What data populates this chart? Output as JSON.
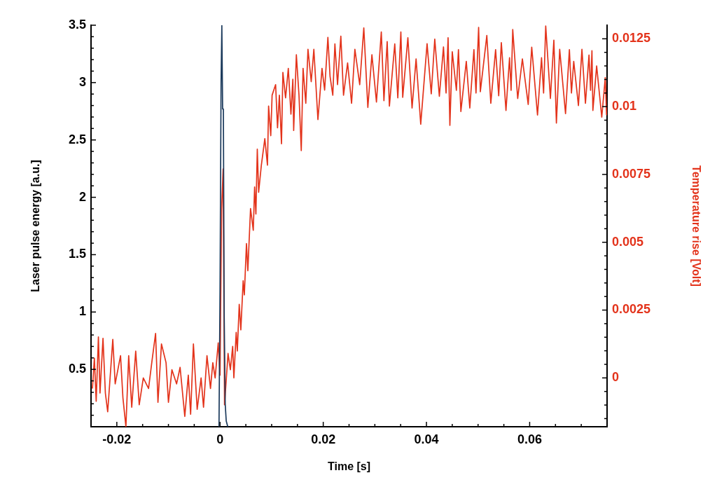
{
  "chart_data": {
    "type": "line",
    "xlabel": "Time [s]",
    "ylabel": "Laser pulse energy [a.u.]",
    "y2label": "Temperature rise [Volt]",
    "xlim": [
      -0.025,
      0.075
    ],
    "xticks": [
      -0.02,
      {
        "value": -0.015,
        "label": null
      },
      {
        "value": -0.01,
        "label": null
      },
      {
        "value": -0.005,
        "label": null
      },
      0,
      {
        "value": 0.005,
        "label": null
      },
      {
        "value": 0.01,
        "label": null
      },
      {
        "value": 0.015,
        "label": null
      },
      0.02,
      {
        "value": 0.025,
        "label": null
      },
      {
        "value": 0.03,
        "label": null
      },
      {
        "value": 0.035,
        "label": null
      },
      0.04,
      {
        "value": 0.045,
        "label": null
      },
      {
        "value": 0.05,
        "label": null
      },
      {
        "value": 0.055,
        "label": null
      },
      0.06,
      {
        "value": 0.065,
        "label": null
      },
      {
        "value": 0.07,
        "label": null
      }
    ],
    "ylim": [
      0,
      3.5
    ],
    "yticks": [
      {
        "value": 0.1,
        "label": null
      },
      {
        "value": 0.2,
        "label": null
      },
      {
        "value": 0.3,
        "label": null
      },
      {
        "value": 0.4,
        "label": null
      },
      0.5,
      {
        "value": 0.6,
        "label": null
      },
      {
        "value": 0.7,
        "label": null
      },
      {
        "value": 0.8,
        "label": null
      },
      {
        "value": 0.9,
        "label": null
      },
      1,
      {
        "value": 1.1,
        "label": null
      },
      {
        "value": 1.2,
        "label": null
      },
      {
        "value": 1.3,
        "label": null
      },
      {
        "value": 1.4,
        "label": null
      },
      1.5,
      {
        "value": 1.6,
        "label": null
      },
      {
        "value": 1.7,
        "label": null
      },
      {
        "value": 1.8,
        "label": null
      },
      {
        "value": 1.9,
        "label": null
      },
      2,
      {
        "value": 2.1,
        "label": null
      },
      {
        "value": 2.2,
        "label": null
      },
      {
        "value": 2.3,
        "label": null
      },
      {
        "value": 2.4,
        "label": null
      },
      2.5,
      {
        "value": 2.6,
        "label": null
      },
      {
        "value": 2.7,
        "label": null
      },
      {
        "value": 2.8,
        "label": null
      },
      {
        "value": 2.9,
        "label": null
      },
      3,
      {
        "value": 3.1,
        "label": null
      },
      {
        "value": 3.2,
        "label": null
      },
      {
        "value": 3.3,
        "label": null
      },
      {
        "value": 3.4,
        "label": null
      },
      3.5
    ],
    "y2lim": [
      -0.0018,
      0.013
    ],
    "y2ticks": [
      {
        "value": -0.0015,
        "label": null
      },
      {
        "value": -0.001,
        "label": null
      },
      {
        "value": -0.0005,
        "label": null
      },
      0,
      {
        "value": 0.0005,
        "label": null
      },
      {
        "value": 0.001,
        "label": null
      },
      {
        "value": 0.0015,
        "label": null
      },
      {
        "value": 0.002,
        "label": null
      },
      0.0025,
      {
        "value": 0.003,
        "label": null
      },
      {
        "value": 0.0035,
        "label": null
      },
      {
        "value": 0.004,
        "label": null
      },
      {
        "value": 0.0045,
        "label": null
      },
      0.005,
      {
        "value": 0.0055,
        "label": null
      },
      {
        "value": 0.006,
        "label": null
      },
      {
        "value": 0.0065,
        "label": null
      },
      {
        "value": 0.007,
        "label": null
      },
      0.0075,
      {
        "value": 0.008,
        "label": null
      },
      {
        "value": 0.0085,
        "label": null
      },
      {
        "value": 0.009,
        "label": null
      },
      {
        "value": 0.0095,
        "label": null
      },
      0.01,
      {
        "value": 0.0105,
        "label": null
      },
      {
        "value": 0.011,
        "label": null
      },
      {
        "value": 0.0115,
        "label": null
      },
      {
        "value": 0.012,
        "label": null
      },
      0.0125
    ],
    "grid": false,
    "legend": false,
    "marker": "none",
    "series": [
      {
        "color": "#1b3a5c",
        "x": [
          -0.0002,
          0,
          0.0002,
          0.00035,
          0.0005,
          0.00065,
          0.0008,
          0.001,
          0.0012,
          0.0015
        ],
        "values": [
          0,
          1.2,
          3.0,
          3.5,
          2.77,
          2.77,
          1.0,
          0.2,
          0.05,
          0
        ]
      },
      {
        "color": "#e3331b",
        "axis": "y2",
        "x": [
          -0.02472,
          -0.02435,
          -0.024,
          -0.02357,
          -0.02326,
          -0.02268,
          -0.02222,
          -0.02177,
          -0.02078,
          -0.02032,
          -0.01928,
          -0.01882,
          -0.01824,
          -0.0177,
          -0.01711,
          -0.01634,
          -0.01566,
          -0.01487,
          -0.01385,
          -0.01317,
          -0.01249,
          -0.01203,
          -0.01135,
          -0.01046,
          -0.01,
          -0.00932,
          -0.00842,
          -0.00774,
          -0.00683,
          -0.00615,
          -0.0057,
          -0.00516,
          -0.00443,
          -0.00367,
          -0.0032,
          -0.00253,
          -0.00185,
          -0.0014,
          -0.00095,
          -0.00035,
          0,
          0.0003,
          0.0006,
          0.00087,
          0.00155,
          0.002,
          0.00245,
          0.00268,
          0.00313,
          0.00335,
          0.00372,
          0.00403,
          0.00448,
          0.00471,
          0.00512,
          0.00539,
          0.00591,
          0.00644,
          0.0067,
          0.00695,
          0.00722,
          0.00748,
          0.008,
          0.00868,
          0.00919,
          0.00941,
          0.00983,
          0.01009,
          0.01077,
          0.01114,
          0.0115,
          0.01191,
          0.01218,
          0.0127,
          0.01323,
          0.01374,
          0.01411,
          0.01427,
          0.01479,
          0.0153,
          0.01574,
          0.01609,
          0.01662,
          0.01704,
          0.01767,
          0.01818,
          0.01897,
          0.01976,
          0.02027,
          0.0209,
          0.02132,
          0.02185,
          0.02226,
          0.02277,
          0.02341,
          0.02393,
          0.02472,
          0.02549,
          0.02613,
          0.02707,
          0.02786,
          0.02864,
          0.02943,
          0.03031,
          0.03125,
          0.03176,
          0.03239,
          0.03282,
          0.03386,
          0.03445,
          0.03504,
          0.0354,
          0.0364,
          0.03721,
          0.03799,
          0.03889,
          0.04012,
          0.04093,
          0.04161,
          0.0425,
          0.0433,
          0.0438,
          0.04419,
          0.04454,
          0.045,
          0.0458,
          0.0462,
          0.04667,
          0.04772,
          0.0484,
          0.0492,
          0.0496,
          0.05011,
          0.05044,
          0.0517,
          0.05247,
          0.0534,
          0.054,
          0.05451,
          0.05541,
          0.0561,
          0.0564,
          0.05672,
          0.05768,
          0.05859,
          0.05972,
          0.0604,
          0.06152,
          0.0623,
          0.0627,
          0.06311,
          0.06402,
          0.06469,
          0.06518,
          0.06582,
          0.06695,
          0.0677,
          0.0681,
          0.06854,
          0.06945,
          0.07013,
          0.07081,
          0.0715,
          0.0718,
          0.07207,
          0.07225,
          0.07298,
          0.07397,
          0.07465,
          0.0749
        ],
        "values": [
          -0.00038,
          0.00073,
          -0.00086,
          0.00151,
          -0.00056,
          0.00146,
          -0.00056,
          -0.00125,
          0.00142,
          -0.00022,
          0.00082,
          -0.00073,
          -0.0018,
          0.00082,
          -0.00108,
          0.00099,
          -0.00099,
          0,
          -0.00039,
          0.00065,
          0.00164,
          -0.0009,
          0.00125,
          0.00056,
          -0.0009,
          0.0003,
          -0.00022,
          0.00039,
          -0.00142,
          0.0001,
          -0.00134,
          0.00125,
          -0.00116,
          0,
          -0.00108,
          0.00082,
          -0.00039,
          0.00056,
          0,
          0.00129,
          0.0001,
          0.0062,
          0.0077,
          -0.00099,
          0.0009,
          0.0003,
          0.00116,
          0,
          0.00168,
          0.00099,
          0.00271,
          0.00177,
          0.00358,
          0.00306,
          0.00495,
          0.00395,
          0.00624,
          0.00544,
          0.00704,
          0.00604,
          0.00843,
          0.00684,
          0.00783,
          0.00882,
          0.00784,
          0.01002,
          0.00893,
          0.01042,
          0.01081,
          0.00922,
          0.01042,
          0.00863,
          0.01126,
          0.01032,
          0.01141,
          0.00972,
          0.01101,
          0.00912,
          0.01191,
          0.01042,
          0.00838,
          0.01141,
          0.01012,
          0.01211,
          0.01092,
          0.01211,
          0.00952,
          0.01141,
          0.01061,
          0.01255,
          0.01111,
          0.01042,
          0.01231,
          0.01081,
          0.0126,
          0.01042,
          0.01161,
          0.01012,
          0.01211,
          0.01081,
          0.0129,
          0.00997,
          0.01191,
          0.01017,
          0.01275,
          0.01022,
          0.0124,
          0.01002,
          0.01231,
          0.01032,
          0.01275,
          0.01034,
          0.01254,
          0.00995,
          0.01176,
          0.00935,
          0.01232,
          0.01047,
          0.01249,
          0.01038,
          0.0122,
          0.0105,
          0.01254,
          0.00931,
          0.01202,
          0.0106,
          0.0121,
          0.00982,
          0.01167,
          0.00995,
          0.0121,
          0.0105,
          0.01292,
          0.01055,
          0.01262,
          0.01012,
          0.0121,
          0.0104,
          0.01236,
          0.00986,
          0.0118,
          0.0106,
          0.01284,
          0.0103,
          0.01176,
          0.01008,
          0.01219,
          0.00969,
          0.0118,
          0.0105,
          0.01297,
          0.0103,
          0.01245,
          0.00939,
          0.01211,
          0.00974,
          0.0121,
          0.0105,
          0.01167,
          0.01004,
          0.01211,
          0.01012,
          0.0119,
          0.0106,
          0.01206,
          0.00986,
          0.0115,
          0.00961,
          0.01107,
          0.0097
        ]
      }
    ]
  }
}
